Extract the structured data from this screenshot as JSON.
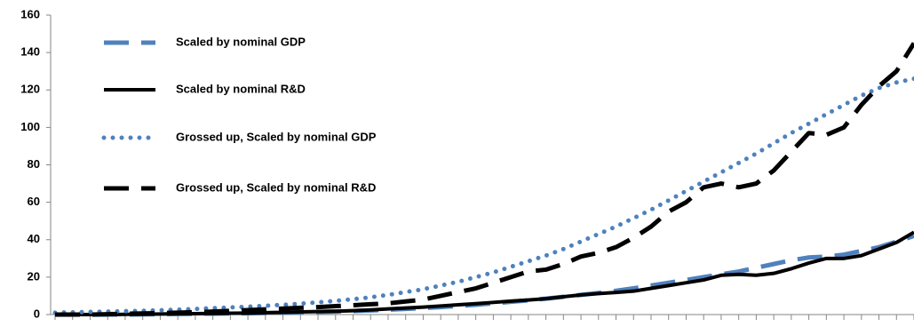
{
  "chart_data": {
    "type": "line",
    "categories": [
      null,
      null,
      null,
      null,
      null,
      null,
      null,
      null,
      null,
      null,
      null,
      null,
      null,
      null,
      null,
      null,
      null,
      null,
      null,
      null,
      null,
      null,
      null,
      null,
      null,
      null,
      null,
      null,
      null,
      null,
      null,
      null,
      null,
      null,
      null,
      null,
      null,
      null,
      null,
      null,
      null,
      null,
      null,
      null,
      null,
      null,
      null,
      null,
      null,
      null
    ],
    "ylim": [
      0,
      160
    ],
    "yticks": [
      0,
      20,
      40,
      60,
      80,
      100,
      120,
      140,
      160
    ],
    "legend": "upper-left",
    "series": [
      {
        "name": "Scaled by nominal GDP",
        "color": "#4f81bd",
        "style": "dashed",
        "values": [
          0,
          0,
          0,
          0,
          0,
          0.1,
          0.2,
          0.3,
          0.4,
          0.5,
          0.6,
          0.7,
          0.8,
          1,
          1.2,
          1.4,
          1.6,
          1.9,
          2.2,
          2.6,
          3,
          3.5,
          4,
          4.6,
          5.2,
          6,
          6.8,
          7.6,
          8.5,
          9.5,
          10.5,
          11.5,
          12.7,
          14,
          15.5,
          17,
          18.5,
          20,
          21.5,
          23,
          25,
          27,
          29,
          30.5,
          31,
          32,
          34,
          36,
          39,
          42
        ]
      },
      {
        "name": "Scaled by nominal R&D",
        "color": "#000000",
        "style": "solid",
        "values": [
          0,
          0,
          0,
          0,
          0.1,
          0.2,
          0.3,
          0.4,
          0.5,
          0.6,
          0.7,
          0.8,
          1,
          1.2,
          1.4,
          1.6,
          1.8,
          2.1,
          2.5,
          3,
          3.5,
          4,
          4.6,
          5.2,
          5.8,
          6.5,
          7.2,
          7.8,
          8.5,
          9.5,
          10.5,
          11.2,
          11.8,
          12.5,
          14,
          15.5,
          17,
          18.5,
          21,
          21.5,
          21,
          22,
          24.5,
          27.5,
          30,
          30,
          31.5,
          35,
          38.5,
          44
        ]
      },
      {
        "name": "Grossed up, Scaled by nominal GDP",
        "color": "#4f81bd",
        "style": "dotted",
        "values": [
          1,
          1.2,
          1.4,
          1.6,
          1.8,
          2,
          2.3,
          2.6,
          3,
          3.4,
          3.8,
          4.2,
          4.7,
          5.2,
          5.8,
          6.5,
          7.3,
          8.2,
          9.2,
          10.5,
          12,
          13.5,
          15.5,
          17.5,
          20,
          22.5,
          25.5,
          28.5,
          31.5,
          35,
          39,
          43,
          47,
          51.5,
          56,
          61,
          66,
          71,
          76,
          81,
          86,
          91.5,
          97,
          102,
          107,
          112,
          117,
          121,
          124,
          126
        ]
      },
      {
        "name": "Grossed up, Scaled by nominal R&D",
        "color": "#000000",
        "style": "dashed",
        "values": [
          0,
          0,
          0,
          0.2,
          0.4,
          0.6,
          0.8,
          1,
          1.3,
          1.6,
          2,
          2.4,
          2.8,
          3.2,
          3.6,
          4,
          4.5,
          5,
          5.5,
          6,
          7,
          8,
          10,
          12,
          14,
          17,
          20,
          23,
          24,
          27,
          31,
          33,
          36,
          41,
          47,
          55,
          60,
          68,
          70,
          68,
          70,
          77,
          87,
          97,
          96,
          100,
          112,
          122,
          130,
          145
        ]
      }
    ]
  }
}
